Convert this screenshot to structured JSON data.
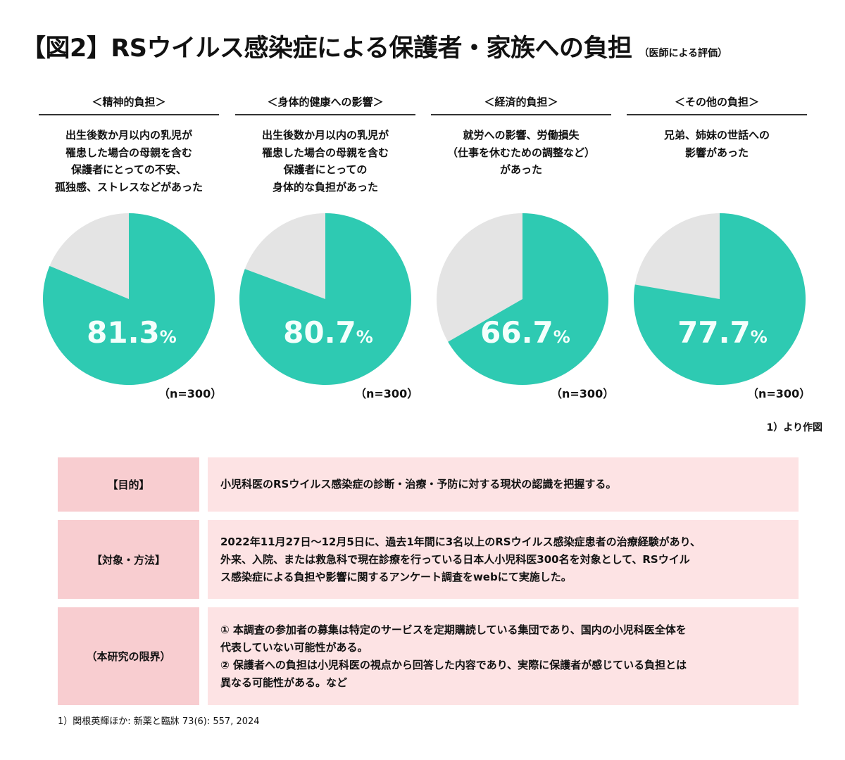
{
  "title": "【図2】RSウイルス感染症による保護者・家族への負担",
  "subtitle": "（医師による評価）",
  "colors": {
    "yes": "#2ecab2",
    "no": "#e4e4e4",
    "label_bg": "#f8cdd0",
    "content_bg": "#fde3e4"
  },
  "chart_data": {
    "type": "pie",
    "charts": [
      {
        "heading": "＜精神的負担＞",
        "description": "出生後数か月以内の乳児が\n罹患した場合の母親を含む\n保護者にとっての不安、\n孤独感、ストレスなどがあった",
        "value": 81.3,
        "value_label": "81.3",
        "unit": "%",
        "n_label": "（n=300）"
      },
      {
        "heading": "＜身体的健康への影響＞",
        "description": "出生後数か月以内の乳児が\n罹患した場合の母親を含む\n保護者にとっての\n身体的な負担があった",
        "value": 80.7,
        "value_label": "80.7",
        "unit": "%",
        "n_label": "（n=300）"
      },
      {
        "heading": "＜経済的負担＞",
        "description": "就労への影響、労働損失\n（仕事を休むための調整など）\nがあった",
        "value": 66.7,
        "value_label": "66.7",
        "unit": "%",
        "n_label": "（n=300）"
      },
      {
        "heading": "＜その他の負担＞",
        "description": "兄弟、姉妹の世話への\n影響があった",
        "value": 77.7,
        "value_label": "77.7",
        "unit": "%",
        "n_label": "（n=300）"
      }
    ]
  },
  "source_note": "1）より作図",
  "table": [
    {
      "label": "【目的】",
      "content": "小児科医のRSウイルス感染症の診断・治療・予防に対する現状の認識を把握する。"
    },
    {
      "label": "【対象・方法】",
      "content": "2022年11月27日～12月5日に、過去1年間に3名以上のRSウイルス感染症患者の治療経験があり、\n外来、入院、または救急科で現在診療を行っている日本人小児科医300名を対象として、RSウイル\nス感染症による負担や影響に関するアンケート調査をwebにて実施した。"
    },
    {
      "label": "（本研究の限界）",
      "content": "① 本調査の参加者の募集は特定のサービスを定期購読している集団であり、国内の小児科医全体を\n代表していない可能性がある。\n② 保護者への負担は小児科医の視点から回答した内容であり、実際に保護者が感じている負担とは\n異なる可能性がある。など"
    }
  ],
  "footnote": "1）関根英輝ほか: 新薬と臨牀 73(6): 557, 2024"
}
